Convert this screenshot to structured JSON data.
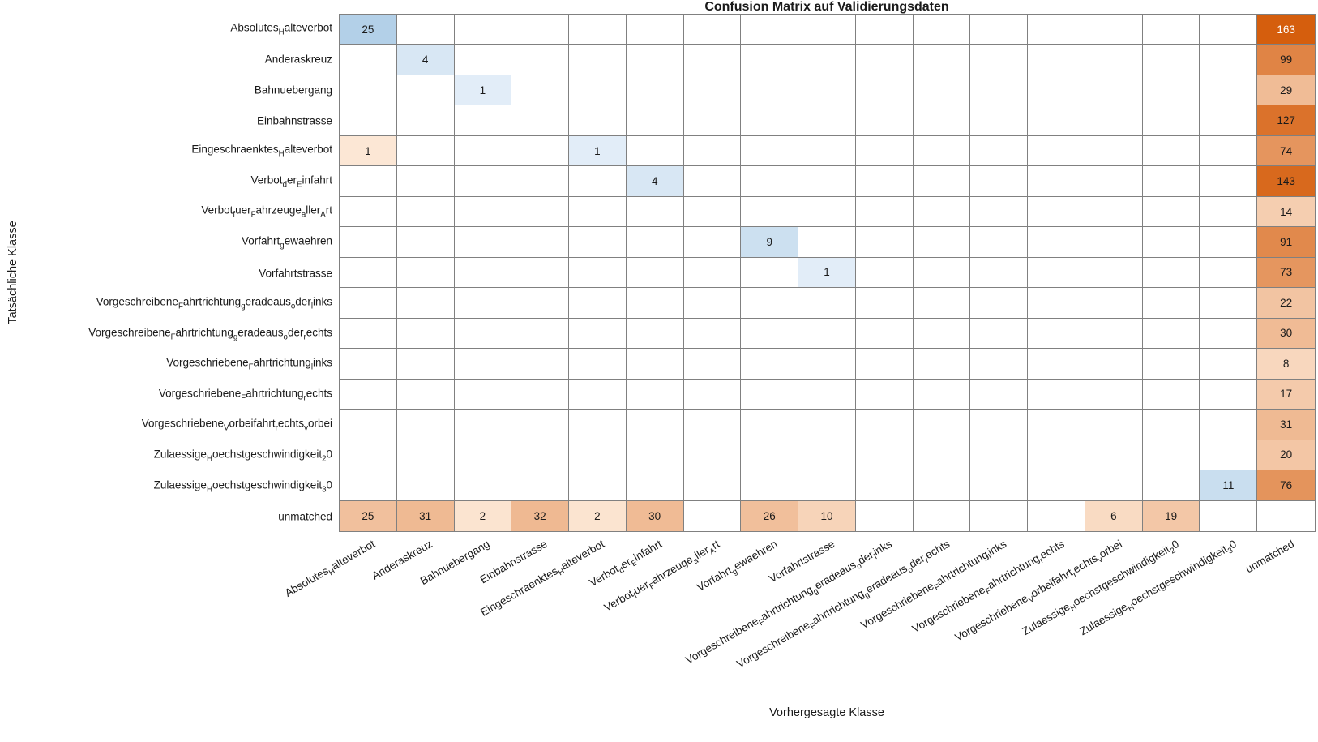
{
  "chart_data": {
    "type": "heatmap",
    "title": "Confusion Matrix auf Validierungsdaten",
    "xlabel": "Vorhergesagte Klasse",
    "ylabel": "Tatsächliche Klasse",
    "classes": [
      "Absolutes_{H}alteverbot",
      "Anderaskreuz",
      "Bahnuebergang",
      "Einbahnstrasse",
      "Eingeschraenktes_{H}alteverbot",
      "Verbot_{d}er_{E}infahrt",
      "Verbot_{f}uer_{F}ahrzeuge_{a}ller_{A}rt",
      "Vorfahrt_{g}ewaehren",
      "Vorfahrtstrasse",
      "Vorgeschreibene_{F}ahrtrichtung_{g}eradeaus_{o}der_{l}inks",
      "Vorgeschreibene_{F}ahrtrichtung_{g}eradeaus_{o}der_{r}echts",
      "Vorgeschriebene_{F}ahrtrichtung_{l}inks",
      "Vorgeschriebene_{F}ahrtrichtung_{r}echts",
      "Vorgeschriebene_{V}orbeifahrt_{r}echts_{v}orbei",
      "Zulaessige_{H}oechstgeschwindigkeit_{2}0",
      "Zulaessige_{H}oechstgeschwindigkeit_{3}0",
      "unmatched"
    ],
    "cells": [
      {
        "r": 1,
        "c": 1,
        "v": 25
      },
      {
        "r": 1,
        "c": 17,
        "v": 163
      },
      {
        "r": 2,
        "c": 2,
        "v": 4
      },
      {
        "r": 2,
        "c": 17,
        "v": 99
      },
      {
        "r": 3,
        "c": 3,
        "v": 1
      },
      {
        "r": 3,
        "c": 17,
        "v": 29
      },
      {
        "r": 4,
        "c": 17,
        "v": 127
      },
      {
        "r": 5,
        "c": 1,
        "v": 1
      },
      {
        "r": 5,
        "c": 5,
        "v": 1
      },
      {
        "r": 5,
        "c": 17,
        "v": 74
      },
      {
        "r": 6,
        "c": 6,
        "v": 4
      },
      {
        "r": 6,
        "c": 17,
        "v": 143
      },
      {
        "r": 7,
        "c": 17,
        "v": 14
      },
      {
        "r": 8,
        "c": 8,
        "v": 9
      },
      {
        "r": 8,
        "c": 17,
        "v": 91
      },
      {
        "r": 9,
        "c": 9,
        "v": 1
      },
      {
        "r": 9,
        "c": 17,
        "v": 73
      },
      {
        "r": 10,
        "c": 17,
        "v": 22
      },
      {
        "r": 11,
        "c": 17,
        "v": 30
      },
      {
        "r": 12,
        "c": 17,
        "v": 8
      },
      {
        "r": 13,
        "c": 17,
        "v": 17
      },
      {
        "r": 14,
        "c": 17,
        "v": 31
      },
      {
        "r": 15,
        "c": 17,
        "v": 20
      },
      {
        "r": 16,
        "c": 16,
        "v": 11
      },
      {
        "r": 16,
        "c": 17,
        "v": 76
      },
      {
        "r": 17,
        "c": 1,
        "v": 25
      },
      {
        "r": 17,
        "c": 2,
        "v": 31
      },
      {
        "r": 17,
        "c": 3,
        "v": 2
      },
      {
        "r": 17,
        "c": 4,
        "v": 32
      },
      {
        "r": 17,
        "c": 5,
        "v": 2
      },
      {
        "r": 17,
        "c": 6,
        "v": 30
      },
      {
        "r": 17,
        "c": 8,
        "v": 26
      },
      {
        "r": 17,
        "c": 9,
        "v": 10
      },
      {
        "r": 17,
        "c": 14,
        "v": 6
      },
      {
        "r": 17,
        "c": 15,
        "v": 19
      }
    ],
    "vmax": 163,
    "diagonal_palette": "blue",
    "offdiagonal_palette": "orange",
    "legend": "none",
    "grid": "on"
  },
  "colors": {
    "blue_light": "#e9f2fa",
    "blue_dark": "#3d85c0",
    "orange_light": "#feedde",
    "orange_dark": "#d55e0d",
    "grid_line": "#808080",
    "value_text": "#1a1a1a",
    "value_text_on_dark": "#ffffff"
  }
}
